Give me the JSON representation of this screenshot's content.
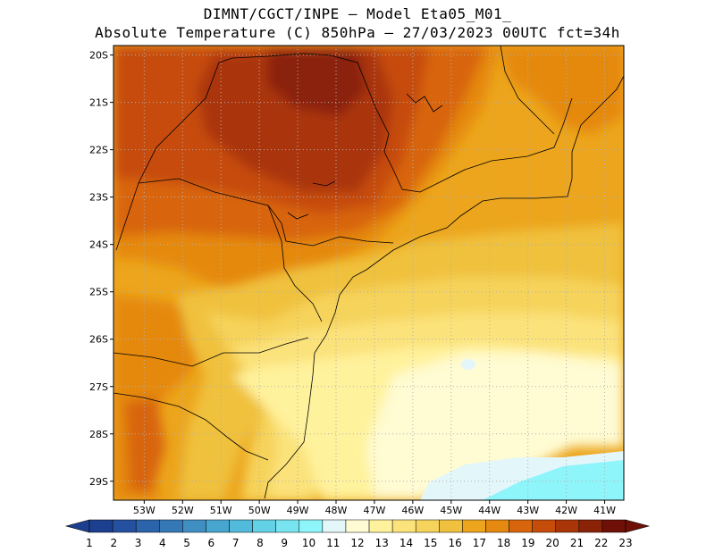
{
  "title": {
    "line1": "DIMNT/CGCT/INPE —  Model Eta05_M01_",
    "line2": "Absolute Temperature (C) 850hPa —  27/03/2023 00UTC fct=34h"
  },
  "map": {
    "lon_range": [
      -53.8,
      -40.5
    ],
    "lat_range": [
      -29.4,
      -19.8
    ],
    "lat_labels": [
      "20S",
      "21S",
      "22S",
      "23S",
      "24S",
      "25S",
      "26S",
      "27S",
      "28S",
      "29S"
    ],
    "lon_labels": [
      "53W",
      "52W",
      "51W",
      "50W",
      "49W",
      "48W",
      "47W",
      "46W",
      "45W",
      "44W",
      "43W",
      "42W",
      "41W"
    ],
    "regions": [
      {
        "name": "cold-patch-southeast",
        "value_c": 10
      },
      {
        "name": "coolest-ocean-band",
        "value_c": 11
      },
      {
        "name": "cool-ocean-zone",
        "value_c": 12
      },
      {
        "name": "hot-core-sao-paulo",
        "value_c": 21
      }
    ]
  },
  "colorbar": {
    "labels": [
      "1",
      "2",
      "3",
      "4",
      "5",
      "6",
      "7",
      "8",
      "9",
      "10",
      "11",
      "12",
      "13",
      "14",
      "15",
      "16",
      "17",
      "18",
      "19",
      "20",
      "21",
      "22",
      "23"
    ],
    "colors": [
      "#1d3f8f",
      "#25509f",
      "#2b64ab",
      "#3578b6",
      "#3f8fc2",
      "#47a5cf",
      "#52bbdb",
      "#63d2e6",
      "#78e4ef",
      "#8ef5fb",
      "#e3f7fb",
      "#fffbd2",
      "#fff29c",
      "#fbe27a",
      "#f6d35a",
      "#f0c13e",
      "#eca51c",
      "#e58910",
      "#d8650b",
      "#c64c0a",
      "#aa3508",
      "#8a2207",
      "#6e1006"
    ]
  }
}
